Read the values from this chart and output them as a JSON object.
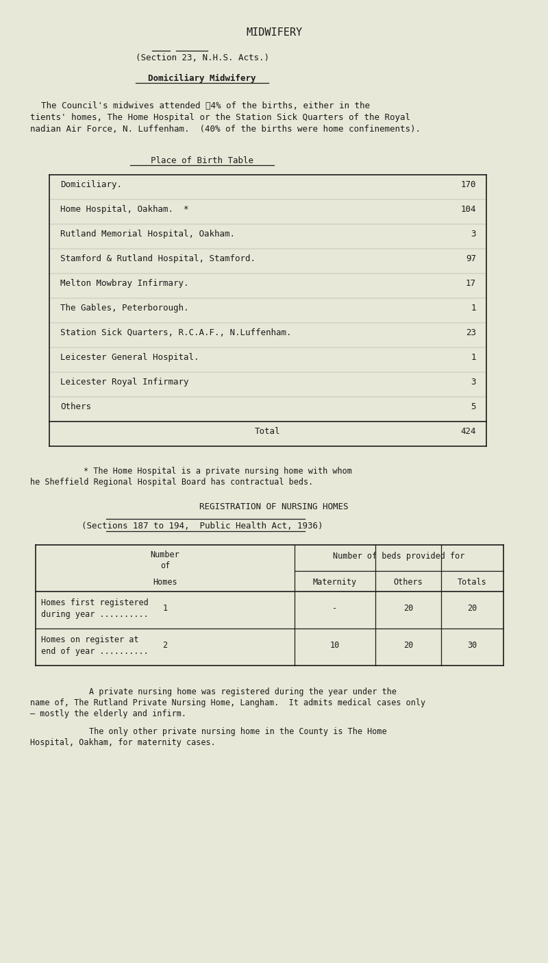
{
  "bg_color": "#e8e8d8",
  "text_color": "#1a1a1a",
  "title": "MIDWIFERY",
  "section_line": "(Section 23, N.H.S. Acts.)",
  "subtitle": "Domiciliary Midwifery",
  "para1_line1": "The Council's midwives attended ⁤4% of the births, either in the",
  "para1_line2": "tients' homes, The Home Hospital or the Station Sick Quarters of the Royal",
  "para1_line3": "nadian Air Force, N. Luffenham.  (40% of the births were home confinements).",
  "table1_title": "Place of Birth Table",
  "table1_rows": [
    [
      "Domiciliary.",
      "170"
    ],
    [
      "Home Hospital, Oakham.  *",
      "104"
    ],
    [
      "Rutland Memorial Hospital, Oakham.",
      "3"
    ],
    [
      "Stamford & Rutland Hospital, Stamford.",
      "97"
    ],
    [
      "Melton Mowbray Infirmary.",
      "17"
    ],
    [
      "The Gables, Peterborough.",
      "1"
    ],
    [
      "Station Sick Quarters, R.C.A.F., N.Luffenham.",
      "23"
    ],
    [
      "Leicester General Hospital.",
      "1"
    ],
    [
      "Leicester Royal Infirmary",
      "3"
    ],
    [
      "Others",
      "5"
    ]
  ],
  "table1_total_label": "Total",
  "table1_total_value": "424",
  "footnote1_line1": "* The Home Hospital is a private nursing home with whom",
  "footnote1_line2": "he Sheffield Regional Hospital Board has contractual beds.",
  "section2_title": "REGISTRATION OF NURSING HOMES",
  "section2_line": "(Sections 187 to 194,  Public Health Act, 1936)",
  "table2_rows": [
    [
      "Homes first registered",
      "during year ..........",
      "1",
      "-",
      "20",
      "20"
    ],
    [
      "Homes on register at",
      "end of year ..........",
      "2",
      "10",
      "20",
      "30"
    ]
  ],
  "para2_line1": "A private nursing home was registered during the year under the",
  "para2_line2": "name of, The Rutland Private Nursing Home, Langham.  It admits medical cases only",
  "para2_line3": "— mostly the elderly and infirm.",
  "para3_line1": "The only other private nursing home in the County is The Home",
  "para3_line2": "Hospital, Oakham, for maternity cases."
}
